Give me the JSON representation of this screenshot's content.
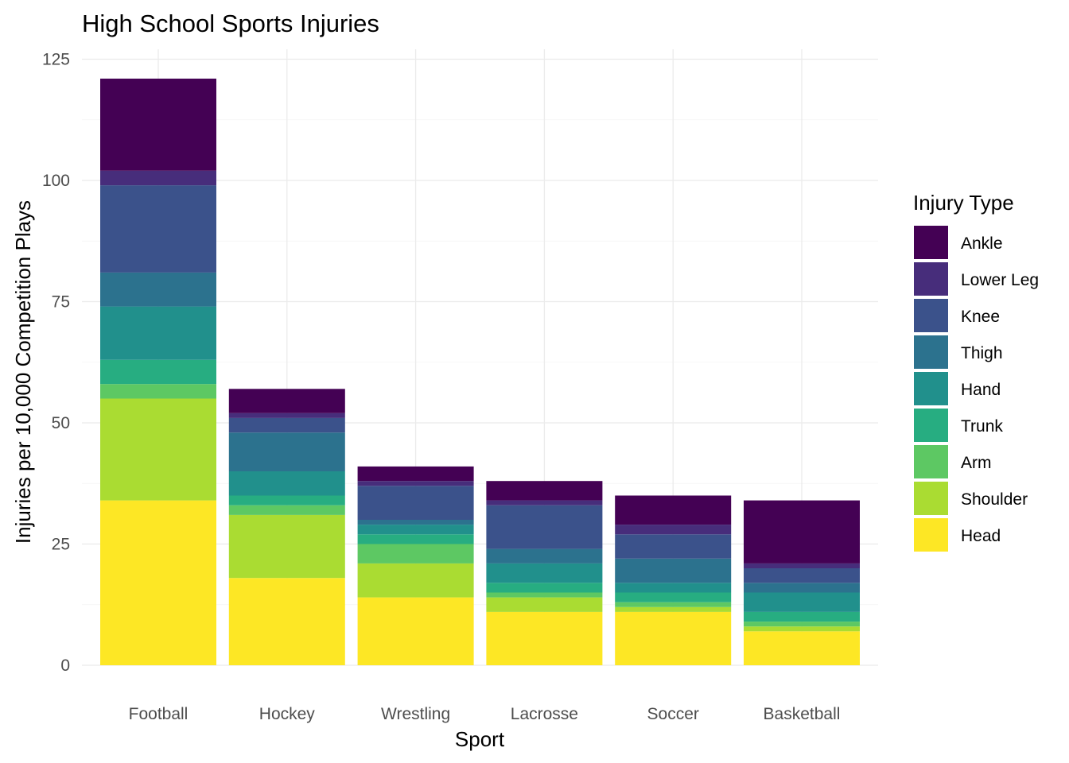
{
  "chart_data": {
    "type": "bar",
    "stacked": true,
    "title": "High School Sports Injuries",
    "xlabel": "Sport",
    "ylabel": "Injuries per 10,000 Competition Plays",
    "ylim": [
      0,
      125
    ],
    "yticks": [
      0,
      25,
      50,
      75,
      100,
      125
    ],
    "grid": true,
    "legend": {
      "title": "Injury Type",
      "position": "right"
    },
    "categories": [
      "Football",
      "Hockey",
      "Wrestling",
      "Lacrosse",
      "Soccer",
      "Basketball"
    ],
    "series": [
      {
        "name": "Head",
        "color": "#FDE725",
        "values": [
          34,
          18,
          14,
          11,
          11,
          7
        ]
      },
      {
        "name": "Shoulder",
        "color": "#AADC32",
        "values": [
          21,
          13,
          7,
          3,
          1,
          1
        ]
      },
      {
        "name": "Arm",
        "color": "#5DC863",
        "values": [
          3,
          2,
          4,
          1,
          1,
          1
        ]
      },
      {
        "name": "Trunk",
        "color": "#27AD81",
        "values": [
          5,
          2,
          2,
          2,
          2,
          2
        ]
      },
      {
        "name": "Hand",
        "color": "#21908C",
        "values": [
          11,
          5,
          2,
          4,
          2,
          4
        ]
      },
      {
        "name": "Thigh",
        "color": "#2C728E",
        "values": [
          7,
          8,
          1,
          3,
          5,
          2
        ]
      },
      {
        "name": "Knee",
        "color": "#3B528B",
        "values": [
          18,
          3,
          7,
          9,
          5,
          3
        ]
      },
      {
        "name": "Lower Leg",
        "color": "#472D7B",
        "values": [
          3,
          1,
          1,
          1,
          2,
          1
        ]
      },
      {
        "name": "Ankle",
        "color": "#440154",
        "values": [
          19,
          5,
          3,
          4,
          6,
          13
        ]
      }
    ]
  }
}
